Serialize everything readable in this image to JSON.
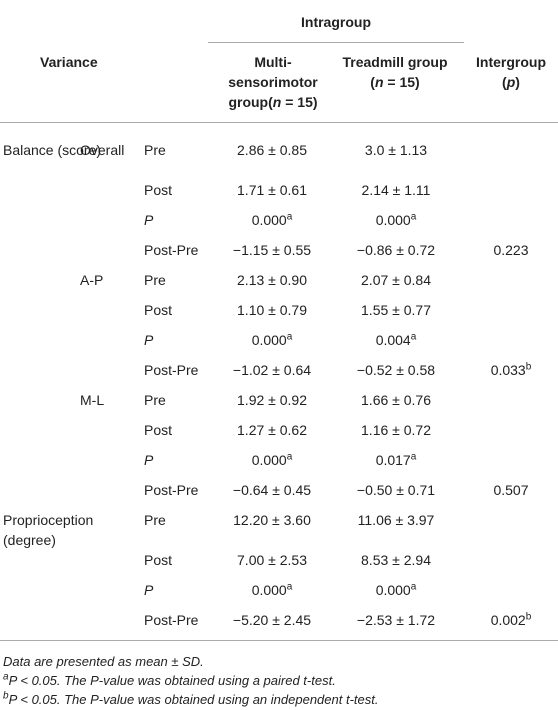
{
  "table": {
    "header": {
      "variance": "Variance",
      "intragroup": "Intragroup",
      "multi": [
        "Multi-sensorimotor group(",
        "n",
        " = 15)"
      ],
      "treadmill": [
        "Treadmill group (",
        "n",
        " = 15)"
      ],
      "intergroup": [
        "Intergroup (",
        "p",
        ")"
      ]
    },
    "rows": [
      {
        "variable": "Balance (score)",
        "subgroup": "Overall",
        "time": "Pre",
        "multi": {
          "text": "2.86 ± 0.85"
        },
        "treadmill": {
          "text": "3.0 ± 1.13"
        }
      },
      {
        "time": "Post",
        "multi": {
          "text": "1.71 ± 0.61"
        },
        "treadmill": {
          "text": "2.14 ± 1.11"
        }
      },
      {
        "time": "P",
        "multi": {
          "text": "0.000",
          "sup": "a"
        },
        "treadmill": {
          "text": "0.000",
          "sup": "a"
        }
      },
      {
        "time": "Post-Pre",
        "multi": {
          "text": "−1.15 ± 0.55"
        },
        "treadmill": {
          "text": "−0.86 ± 0.72"
        },
        "inter": {
          "text": "0.223"
        }
      },
      {
        "subgroup": "A-P",
        "time": "Pre",
        "multi": {
          "text": "2.13 ± 0.90"
        },
        "treadmill": {
          "text": "2.07 ± 0.84"
        }
      },
      {
        "time": "Post",
        "multi": {
          "text": "1.10 ± 0.79"
        },
        "treadmill": {
          "text": "1.55 ± 0.77"
        }
      },
      {
        "time": "P",
        "multi": {
          "text": "0.000",
          "sup": "a"
        },
        "treadmill": {
          "text": "0.004",
          "sup": "a"
        }
      },
      {
        "time": "Post-Pre",
        "multi": {
          "text": "−1.02 ± 0.64"
        },
        "treadmill": {
          "text": "−0.52 ± 0.58"
        },
        "inter": {
          "text": "0.033",
          "sup": "b"
        }
      },
      {
        "subgroup": "M-L",
        "time": "Pre",
        "multi": {
          "text": "1.92 ± 0.92"
        },
        "treadmill": {
          "text": "1.66 ± 0.76"
        }
      },
      {
        "time": "Post",
        "multi": {
          "text": "1.27 ± 0.62"
        },
        "treadmill": {
          "text": "1.16 ± 0.72"
        }
      },
      {
        "time": "P",
        "multi": {
          "text": "0.000",
          "sup": "a"
        },
        "treadmill": {
          "text": "0.017",
          "sup": "a"
        }
      },
      {
        "time": "Post-Pre",
        "multi": {
          "text": "−0.64 ± 0.45"
        },
        "treadmill": {
          "text": "−0.50 ± 0.71"
        },
        "inter": {
          "text": "0.507"
        }
      },
      {
        "variable": "Proprioception (degree)",
        "time": "Pre",
        "multi": {
          "text": "12.20 ± 3.60"
        },
        "treadmill": {
          "text": "11.06 ± 3.97"
        }
      },
      {
        "time": "Post",
        "multi": {
          "text": "7.00 ± 2.53"
        },
        "treadmill": {
          "text": "8.53 ± 2.94"
        }
      },
      {
        "time": "P",
        "multi": {
          "text": "0.000",
          "sup": "a"
        },
        "treadmill": {
          "text": "0.000",
          "sup": "a"
        }
      },
      {
        "time": "Post-Pre",
        "multi": {
          "text": "−5.20 ± 2.45"
        },
        "treadmill": {
          "text": "−2.53 ± 1.72"
        },
        "inter": {
          "text": "0.002",
          "sup": "b"
        }
      }
    ],
    "footnotes": [
      {
        "text": "Data are presented as mean ± SD."
      },
      {
        "sup": "a",
        "text": "P < 0.05. The P-value was obtained using a paired t-test."
      },
      {
        "sup": "b",
        "text": "P < 0.05. The P-value was obtained using an independent t-test."
      }
    ]
  }
}
